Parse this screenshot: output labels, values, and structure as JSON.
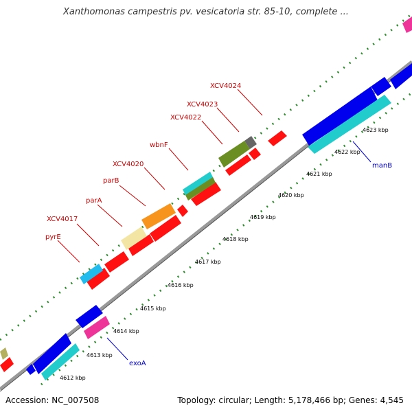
{
  "header": {
    "title": "Xanthomonas campestris pv. vesicatoria str. 85-10, complete ..."
  },
  "footer": {
    "accession": "Accession: NC_007508",
    "topology": "Topology: circular; Length: 5,178,466 bp; Genes: 4,545"
  },
  "colors": {
    "forward_gene": "#ff0000",
    "reverse_gene": "#0000ee",
    "label_red": "#cc0000",
    "label_blue": "#0000cc",
    "backbone": "#888888",
    "tick_green": "#2e8b2e"
  },
  "kbp_ticks": [
    {
      "label": "4612 kbp"
    },
    {
      "label": "4613 kbp"
    },
    {
      "label": "4614 kbp"
    },
    {
      "label": "4615 kbp"
    },
    {
      "label": "4616 kbp"
    },
    {
      "label": "4617 kbp"
    },
    {
      "label": "4618 kbp"
    },
    {
      "label": "4619 kbp"
    },
    {
      "label": "4620 kbp"
    },
    {
      "label": "4621 kbp"
    },
    {
      "label": "4622 kbp"
    },
    {
      "label": "4623 kbp"
    }
  ],
  "gene_labels": [
    {
      "name": "XCV4024",
      "strand": "forward"
    },
    {
      "name": "XCV4023",
      "strand": "forward"
    },
    {
      "name": "XCV4022",
      "strand": "forward"
    },
    {
      "name": "wbnF",
      "strand": "forward"
    },
    {
      "name": "XCV4020",
      "strand": "forward"
    },
    {
      "name": "parB",
      "strand": "forward"
    },
    {
      "name": "parA",
      "strand": "forward"
    },
    {
      "name": "XCV4017",
      "strand": "forward"
    },
    {
      "name": "pyrE",
      "strand": "forward"
    },
    {
      "name": "manB",
      "strand": "reverse"
    },
    {
      "name": "exoA",
      "strand": "reverse"
    }
  ]
}
